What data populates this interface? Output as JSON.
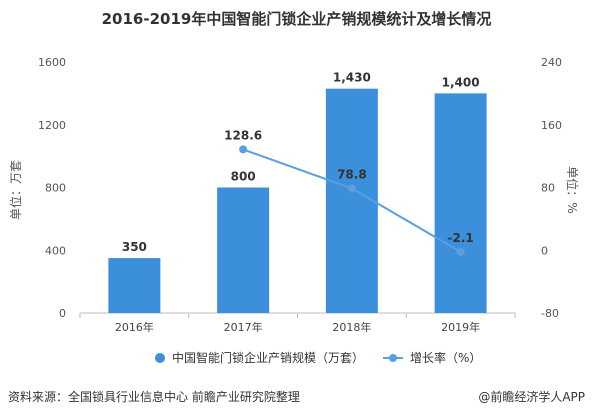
{
  "title": "2016-2019年中国智能门锁企业产销规模统计及增长情况",
  "chart_data": {
    "type": "bar",
    "categories": [
      "2016年",
      "2017年",
      "2018年",
      "2019年"
    ],
    "series": [
      {
        "name": "中国智能门锁企业产销规模（万套）",
        "type": "bar",
        "axis": "left",
        "values": [
          350,
          800,
          1430,
          1400
        ],
        "labels": [
          "350",
          "800",
          "1,430",
          "1,400"
        ],
        "color": "#3B8FDB"
      },
      {
        "name": "增长率（%）",
        "type": "line",
        "axis": "right",
        "values": [
          null,
          128.6,
          78.8,
          -2.1
        ],
        "labels": [
          "",
          "128.6",
          "78.8",
          "-2.1"
        ],
        "color": "#5A9FE0"
      }
    ],
    "ylabel": "单位：万套",
    "y2label": "单位：%",
    "ylim": [
      0,
      1600
    ],
    "y2lim": [
      -80,
      240
    ],
    "yticks": [
      "0",
      "400",
      "800",
      "1200",
      "1600"
    ],
    "y2ticks": [
      "-80",
      "0",
      "80",
      "160",
      "240"
    ],
    "grid": false,
    "legend_position": "bottom"
  },
  "footer": {
    "source": "资料来源：全国锁具行业信息中心 前瞻产业研究院整理",
    "credit": "@前瞻经济学人APP"
  }
}
